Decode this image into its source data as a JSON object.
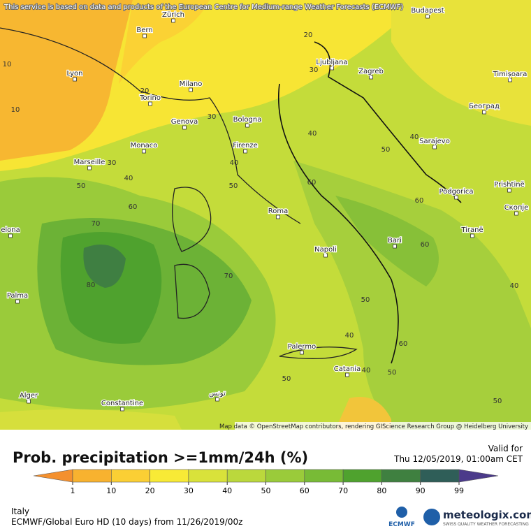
{
  "notice": "This service is based on data and products of the European Centre for Medium-range Weather Forecasts (ECMWF)",
  "attribution": "Map data © OpenStreetMap contributors, rendering GIScience Research Group @ Heidelberg University",
  "cities": [
    "Bern",
    "Zürich",
    "Budapest",
    "Lyon",
    "Milano",
    "Torino",
    "Genova",
    "Bologna",
    "Monaco",
    "Firenze",
    "Marseille",
    "Ljubljana",
    "Zagreb",
    "Timișoara",
    "Београд",
    "Sarajevo",
    "Podgorica",
    "Prishtinë",
    "Скопје",
    "Tiranë",
    "Roma",
    "Napoli",
    "Bari",
    "Palma",
    "elona",
    "Palermo",
    "Catania",
    "Alger",
    "Constantine",
    "تونس"
  ],
  "contour_labels": [
    10,
    10,
    20,
    20,
    30,
    30,
    30,
    40,
    40,
    40,
    40,
    50,
    50,
    50,
    60,
    60,
    60,
    60,
    70,
    70,
    80,
    50,
    40,
    60,
    40,
    50,
    50,
    40,
    50
  ],
  "title": "Prob. precipitation >=1mm/24h (%)",
  "valid_label": "Valid for",
  "valid_time": "Thu 12/05/2019, 01:00am CET",
  "legend": {
    "ticks": [
      1,
      10,
      20,
      30,
      40,
      50,
      60,
      70,
      80,
      90,
      99
    ],
    "colors": [
      "#f4902e",
      "#f8b22f",
      "#fbcf34",
      "#f8ea36",
      "#d9e23a",
      "#bbd83c",
      "#9acb3a",
      "#78bb36",
      "#4fa22e",
      "#3f8040",
      "#2f5e58",
      "#4b3a8a"
    ]
  },
  "region": "Italy",
  "model": "ECMWF/Global Euro HD (10 days)  from  11/26/2019/00z",
  "logo_ecmwf": "ECMWF",
  "logo_name": "meteologix.com",
  "logo_tagline": "SWISS QUALITY WEATHER FORECASTING"
}
